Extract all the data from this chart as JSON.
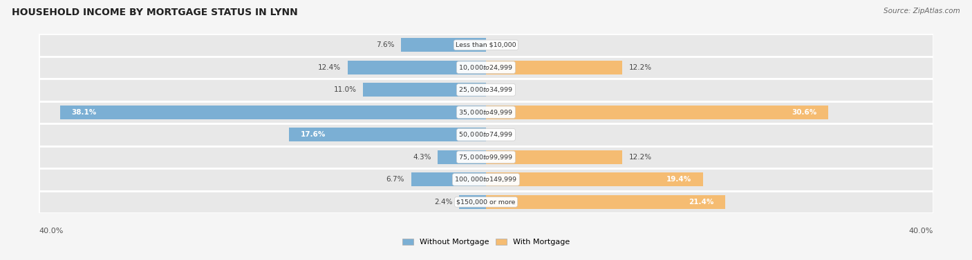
{
  "title": "HOUSEHOLD INCOME BY MORTGAGE STATUS IN LYNN",
  "source": "Source: ZipAtlas.com",
  "categories": [
    "Less than $10,000",
    "$10,000 to $24,999",
    "$25,000 to $34,999",
    "$35,000 to $49,999",
    "$50,000 to $74,999",
    "$75,000 to $99,999",
    "$100,000 to $149,999",
    "$150,000 or more"
  ],
  "without_mortgage": [
    7.6,
    12.4,
    11.0,
    38.1,
    17.6,
    4.3,
    6.7,
    2.4
  ],
  "with_mortgage": [
    0.0,
    12.2,
    0.0,
    30.6,
    0.0,
    12.2,
    19.4,
    21.4
  ],
  "without_mortgage_color": "#7bafd4",
  "with_mortgage_color": "#f5bc72",
  "axis_max": 40.0,
  "axis_label_left": "40.0%",
  "axis_label_right": "40.0%",
  "title_fontsize": 10,
  "source_fontsize": 7.5,
  "bar_height": 0.62,
  "row_bg_color": "#e8e8e8",
  "row_border_color": "#ffffff",
  "label_color_dark": "#444444",
  "label_color_white": "#ffffff",
  "center_label_color": "#333333",
  "center_label_bg": "#ffffff",
  "legend_label_without": "Without Mortgage",
  "legend_label_with": "With Mortgage",
  "large_bar_threshold": 14.0,
  "fig_bg": "#f5f5f5"
}
